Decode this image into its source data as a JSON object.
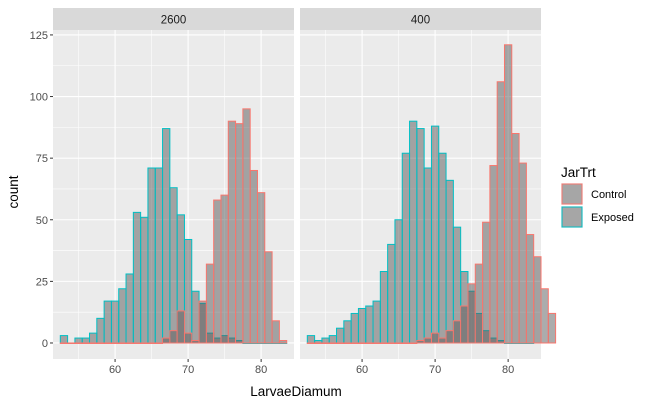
{
  "chart_data": {
    "type": "histogram",
    "xlabel": "LarvaeDiamum",
    "ylabel": "count",
    "xlim": [
      51.5,
      84.5
    ],
    "ylim": [
      -6.5,
      127
    ],
    "x_ticks": [
      60,
      70,
      80
    ],
    "y_ticks": [
      0,
      25,
      50,
      75,
      100,
      125
    ],
    "bin_start": 52.5,
    "bin_width": 1,
    "legend": {
      "title": "JarTrt",
      "placement": "right",
      "entries": [
        {
          "name": "Control",
          "outline": "#F8766D"
        },
        {
          "name": "Exposed",
          "outline": "#00BFC4"
        }
      ]
    },
    "panels": [
      {
        "label": "2600",
        "series": [
          {
            "name": "Exposed",
            "counts": [
              3,
              0,
              2,
              2,
              4,
              10,
              17,
              17,
              22,
              28,
              53,
              51,
              71,
              71,
              87,
              63,
              52,
              42,
              21,
              16,
              4,
              2,
              3,
              2,
              1,
              0,
              0,
              0,
              0,
              0,
              0
            ]
          },
          {
            "name": "Control",
            "counts": [
              0,
              0,
              0,
              0,
              0,
              0,
              0,
              0,
              0,
              0,
              0,
              0,
              0,
              0,
              2,
              5,
              13,
              4,
              1,
              17,
              32,
              58,
              60,
              90,
              89,
              95,
              70,
              61,
              37,
              9,
              1
            ]
          }
        ]
      },
      {
        "label": "400",
        "series": [
          {
            "name": "Exposed",
            "counts": [
              3,
              1,
              2,
              3,
              6,
              9,
              12,
              14,
              15,
              17,
              29,
              40,
              50,
              77,
              90,
              87,
              71,
              88,
              77,
              66,
              47,
              29,
              21,
              12,
              5,
              2,
              1,
              0,
              0,
              0,
              0
            ]
          },
          {
            "name": "Control",
            "counts": [
              0,
              0,
              0,
              0,
              0,
              0,
              0,
              0,
              0,
              0,
              0,
              0,
              0,
              0,
              0,
              1,
              2,
              4,
              2,
              5,
              9,
              15,
              24,
              32,
              49,
              72,
              106,
              121,
              85,
              73,
              44,
              35,
              22,
              12
            ]
          }
        ]
      }
    ]
  },
  "colors": {
    "panel_bg": "#EBEBEB",
    "strip_bg": "#D9D9D9",
    "grid": "#FFFFFF",
    "bar_fill": "#595959",
    "bar_fill_opacity": 0.5,
    "control": "#F8766D",
    "exposed": "#00BFC4"
  }
}
